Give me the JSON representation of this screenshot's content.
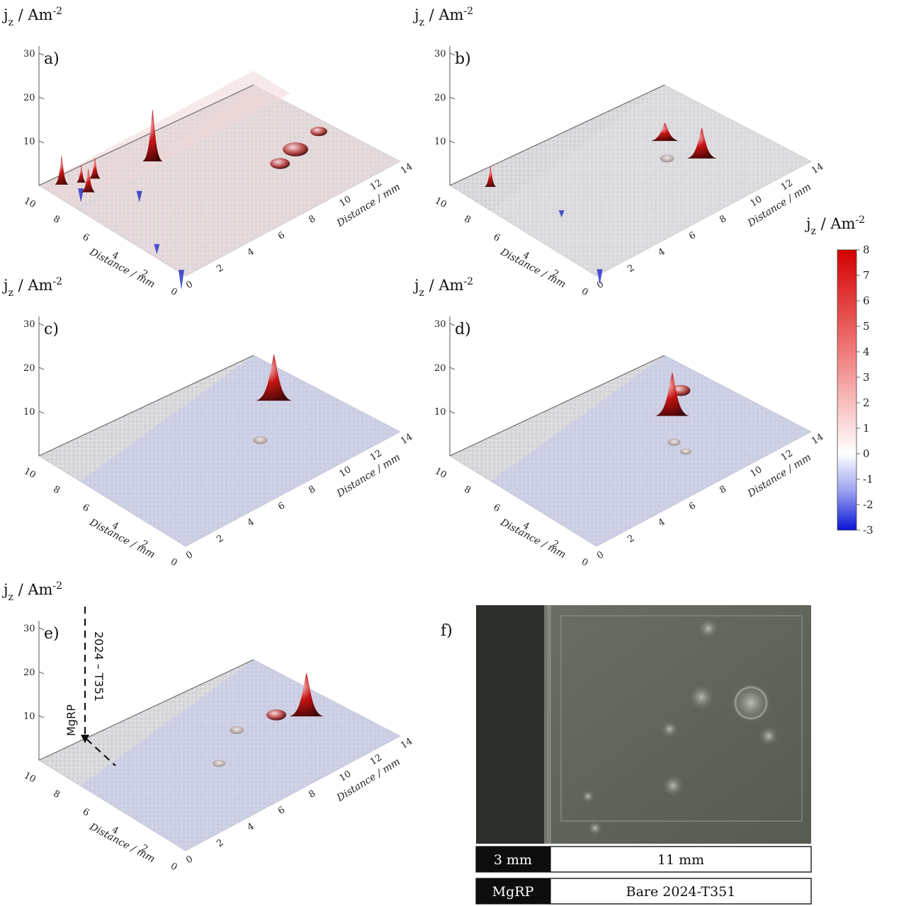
{
  "figure": {
    "ylabel_base": "j",
    "ylabel_sub": "z",
    "ylabel_unit": " / Am",
    "ylabel_sup": "-2",
    "axis_label": "Distance / mm",
    "z_ticks": [
      "30",
      "20",
      "10"
    ],
    "x_ticks": [
      "0",
      "2",
      "4",
      "6",
      "8",
      "10",
      "12",
      "14"
    ],
    "y_ticks": [
      "10",
      "8",
      "6",
      "4",
      "2",
      "0"
    ]
  },
  "colorbar": {
    "label_base": "j",
    "label_sub": "z",
    "label_unit": " / Am",
    "label_sup": "-2",
    "min": -3,
    "max": 8,
    "ticks": [
      "8",
      "7",
      "6",
      "5",
      "4",
      "3",
      "2",
      "1",
      "0",
      "-1",
      "-2",
      "-3"
    ],
    "colors": {
      "max": "#d40000",
      "zero": "#ffffff",
      "min": "#0a14d8"
    }
  },
  "panels": [
    {
      "id": "a",
      "label": "a)"
    },
    {
      "id": "b",
      "label": "b)"
    },
    {
      "id": "c",
      "label": "c)"
    },
    {
      "id": "d",
      "label": "d)"
    },
    {
      "id": "e",
      "label": "e)"
    }
  ],
  "panel_e_annotations": {
    "material_top": "2024 – T351",
    "material_left": "MgRP"
  },
  "panel_f": {
    "label": "f)",
    "scale_left": "3 mm",
    "scale_right": "11 mm",
    "region_left": "MgRP",
    "region_right": "Bare 2024-T351"
  }
}
